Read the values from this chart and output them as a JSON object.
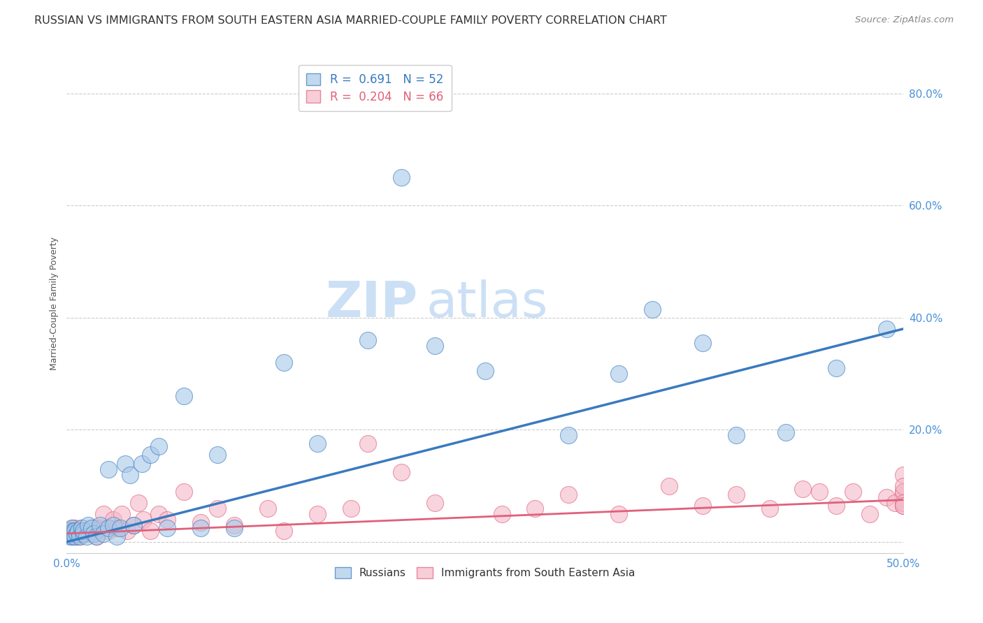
{
  "title": "RUSSIAN VS IMMIGRANTS FROM SOUTH EASTERN ASIA MARRIED-COUPLE FAMILY POVERTY CORRELATION CHART",
  "source": "Source: ZipAtlas.com",
  "ylabel": "Married-Couple Family Poverty",
  "xlim": [
    0.0,
    0.5
  ],
  "ylim": [
    -0.02,
    0.87
  ],
  "blue_color": "#a8c8e8",
  "pink_color": "#f4b8c8",
  "blue_line_color": "#3a7abf",
  "pink_line_color": "#e0607a",
  "grid_color": "#cccccc",
  "bg_color": "#ffffff",
  "watermark_zip": "ZIP",
  "watermark_atlas": "atlas",
  "legend_r_blue": "0.691",
  "legend_n_blue": "52",
  "legend_r_pink": "0.204",
  "legend_n_pink": "66",
  "blue_line_x": [
    0.0,
    0.5
  ],
  "blue_line_y": [
    0.0,
    0.38
  ],
  "pink_line_x": [
    0.0,
    0.5
  ],
  "pink_line_y": [
    0.015,
    0.075
  ],
  "russians_x": [
    0.001,
    0.002,
    0.002,
    0.003,
    0.003,
    0.004,
    0.004,
    0.005,
    0.005,
    0.006,
    0.007,
    0.008,
    0.009,
    0.01,
    0.01,
    0.012,
    0.013,
    0.015,
    0.016,
    0.018,
    0.02,
    0.022,
    0.025,
    0.025,
    0.028,
    0.03,
    0.032,
    0.035,
    0.038,
    0.04,
    0.045,
    0.05,
    0.055,
    0.06,
    0.07,
    0.08,
    0.09,
    0.1,
    0.13,
    0.15,
    0.18,
    0.2,
    0.22,
    0.25,
    0.3,
    0.33,
    0.35,
    0.38,
    0.4,
    0.43,
    0.46,
    0.49
  ],
  "russians_y": [
    0.015,
    0.01,
    0.02,
    0.025,
    0.01,
    0.02,
    0.015,
    0.02,
    0.01,
    0.015,
    0.02,
    0.01,
    0.025,
    0.015,
    0.02,
    0.01,
    0.03,
    0.025,
    0.015,
    0.01,
    0.03,
    0.015,
    0.13,
    0.025,
    0.03,
    0.01,
    0.025,
    0.14,
    0.12,
    0.03,
    0.14,
    0.155,
    0.17,
    0.025,
    0.26,
    0.025,
    0.155,
    0.025,
    0.32,
    0.175,
    0.36,
    0.65,
    0.35,
    0.305,
    0.19,
    0.3,
    0.415,
    0.355,
    0.19,
    0.195,
    0.31,
    0.38
  ],
  "asia_x": [
    0.001,
    0.002,
    0.003,
    0.003,
    0.004,
    0.004,
    0.005,
    0.005,
    0.006,
    0.006,
    0.007,
    0.008,
    0.008,
    0.009,
    0.01,
    0.01,
    0.012,
    0.014,
    0.016,
    0.018,
    0.02,
    0.022,
    0.025,
    0.028,
    0.03,
    0.033,
    0.036,
    0.04,
    0.043,
    0.046,
    0.05,
    0.055,
    0.06,
    0.07,
    0.08,
    0.09,
    0.1,
    0.12,
    0.13,
    0.15,
    0.17,
    0.18,
    0.2,
    0.22,
    0.26,
    0.28,
    0.3,
    0.33,
    0.36,
    0.38,
    0.4,
    0.42,
    0.44,
    0.45,
    0.46,
    0.47,
    0.48,
    0.49,
    0.495,
    0.5,
    0.5,
    0.5,
    0.5,
    0.5,
    0.5,
    0.5
  ],
  "asia_y": [
    0.015,
    0.02,
    0.015,
    0.025,
    0.02,
    0.01,
    0.025,
    0.015,
    0.02,
    0.01,
    0.015,
    0.02,
    0.01,
    0.025,
    0.015,
    0.02,
    0.015,
    0.02,
    0.025,
    0.01,
    0.025,
    0.05,
    0.02,
    0.04,
    0.025,
    0.05,
    0.02,
    0.03,
    0.07,
    0.04,
    0.02,
    0.05,
    0.04,
    0.09,
    0.035,
    0.06,
    0.03,
    0.06,
    0.02,
    0.05,
    0.06,
    0.175,
    0.125,
    0.07,
    0.05,
    0.06,
    0.085,
    0.05,
    0.1,
    0.065,
    0.085,
    0.06,
    0.095,
    0.09,
    0.065,
    0.09,
    0.05,
    0.08,
    0.07,
    0.09,
    0.12,
    0.065,
    0.09,
    0.07,
    0.065,
    0.1
  ],
  "title_fontsize": 11.5,
  "source_fontsize": 9.5,
  "axis_label_fontsize": 9,
  "tick_fontsize": 11,
  "legend_fontsize": 12,
  "watermark_fontsize_zip": 52,
  "watermark_fontsize_atlas": 52
}
